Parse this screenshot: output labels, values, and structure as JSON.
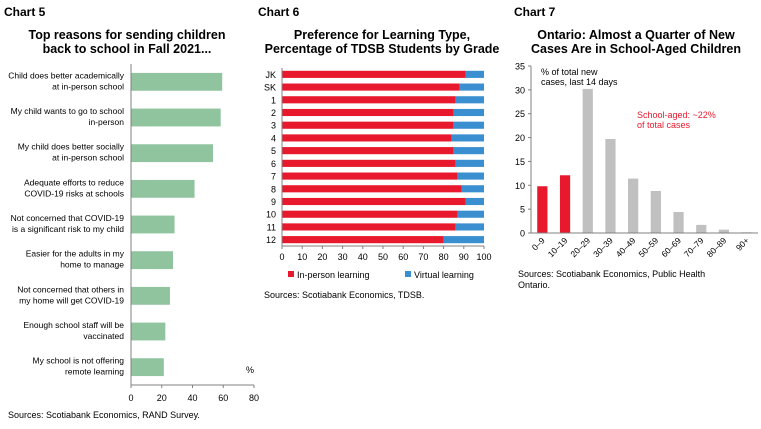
{
  "chart_data": [
    {
      "label": "Chart 5",
      "type": "bar",
      "orientation": "horizontal",
      "title_lines": [
        "Top reasons for sending children",
        "back to school in Fall 2021..."
      ],
      "categories": [
        [
          "Child does better academically",
          "at in-person school"
        ],
        [
          "My child wants to go to school",
          "in-person"
        ],
        [
          "My child does better socially",
          "at in-person school"
        ],
        [
          "Adequate efforts to reduce",
          "COVID-19 risks at schools"
        ],
        [
          "Not concerned that COVID-19",
          "is a significant risk to my child"
        ],
        [
          "Easier for the adults in my",
          "home to manage"
        ],
        [
          "Not concerned that others in",
          "my home will get COVID-19"
        ],
        [
          "Enough school staff will be",
          "vaccinated"
        ],
        [
          "My school is not offering",
          "remote learning"
        ]
      ],
      "values": [
        59,
        58,
        53,
        41,
        28,
        27,
        25,
        22,
        21
      ],
      "xlim": [
        0,
        80
      ],
      "xticks": [
        "0",
        "20",
        "40",
        "60",
        "80"
      ],
      "unit_label": "%",
      "color": "#8fc49f",
      "source": "Sources: Scotiabank Economics, RAND Survey."
    },
    {
      "label": "Chart 6",
      "type": "bar",
      "orientation": "horizontal",
      "stacked": true,
      "title_lines": [
        "Preference for Learning Type,",
        "Percentage of TDSB Students by Grade"
      ],
      "categories": [
        "JK",
        "SK",
        "1",
        "2",
        "3",
        "4",
        "5",
        "6",
        "7",
        "8",
        "9",
        "10",
        "11",
        "12"
      ],
      "series": [
        {
          "name": "In-person learning",
          "color": "#e8192c",
          "values": [
            91,
            88,
            86,
            85,
            85,
            84,
            85,
            86,
            87,
            89,
            91,
            87,
            86,
            80
          ]
        },
        {
          "name": "Virtual learning",
          "color": "#3a8fd0",
          "values": [
            9,
            12,
            14,
            15,
            15,
            16,
            15,
            14,
            13,
            11,
            9,
            13,
            14,
            20
          ]
        }
      ],
      "xlim": [
        0,
        100
      ],
      "xticks": [
        "0",
        "10",
        "20",
        "30",
        "40",
        "50",
        "60",
        "70",
        "80",
        "90",
        "100"
      ],
      "source": "Sources: Scotiabank Economics, TDSB."
    },
    {
      "label": "Chart 7",
      "type": "bar",
      "title_lines": [
        "Ontario: Almost a Quarter of New",
        "Cases Are in School-Aged Children"
      ],
      "categories": [
        "0–9",
        "10–19",
        "20–29",
        "30–39",
        "40–49",
        "50–59",
        "60–69",
        "70–79",
        "80–89",
        "90+"
      ],
      "values": [
        9.8,
        12.1,
        30.2,
        19.7,
        11.4,
        8.8,
        4.4,
        1.7,
        0.7,
        0.15
      ],
      "highlight_indices": [
        0,
        1
      ],
      "highlight_color": "#e8192c",
      "color": "#c0c0c0",
      "ylim": [
        0,
        35
      ],
      "yticks": [
        "0",
        "5",
        "10",
        "15",
        "20",
        "25",
        "30",
        "35"
      ],
      "axis_note_lines": [
        "% of total new",
        "cases, last 14 days"
      ],
      "annotation_lines": [
        "School-aged: ~22%",
        "of total cases"
      ],
      "annotation_color": "#e8192c",
      "source_lines": [
        "Sources: Scotiabank Economics, Public Health",
        "Ontario."
      ]
    }
  ]
}
